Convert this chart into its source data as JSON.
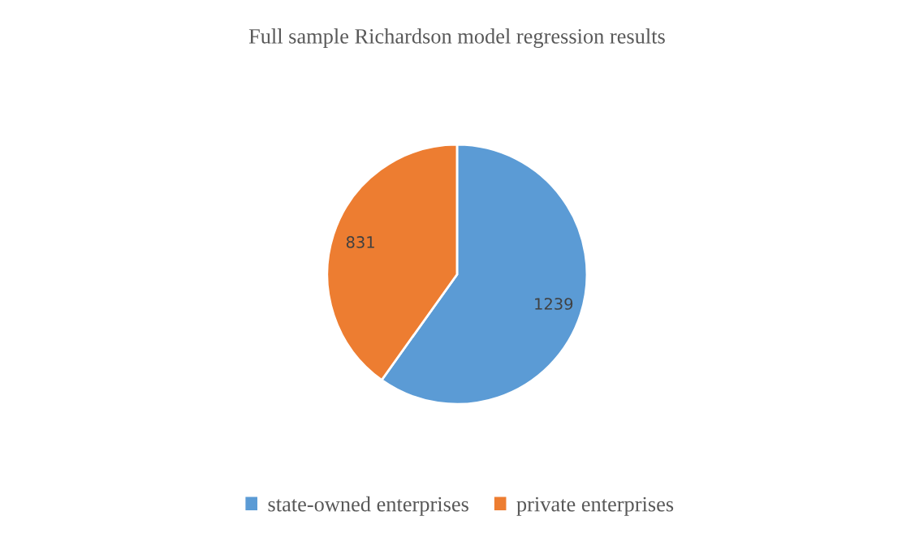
{
  "chart_data": {
    "type": "pie",
    "title": "Full sample Richardson model regression results",
    "categories": [
      "state-owned enterprises",
      "private enterprises"
    ],
    "values": [
      1239,
      831
    ],
    "colors": [
      "#5b9bd5",
      "#ed7d31"
    ],
    "data_labels": true,
    "legend": "bottom"
  }
}
